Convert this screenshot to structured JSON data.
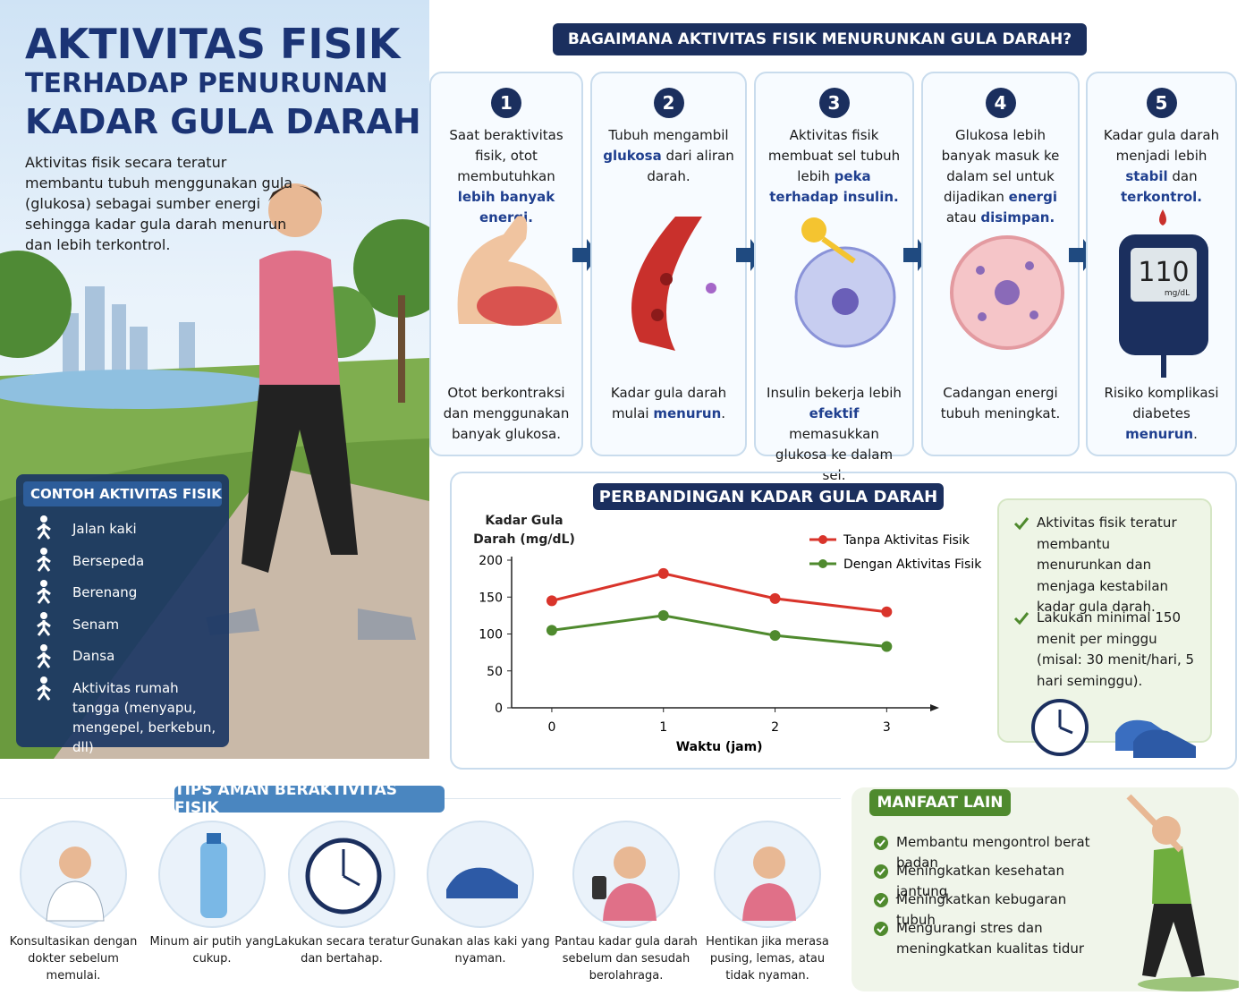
{
  "header": {
    "title": "AKTIVITAS FISIK",
    "subtitle_1": "TERHADAP PENURUNAN",
    "subtitle_2": "KADAR GULA DARAH",
    "description": "Aktivitas fisik secara teratur membantu tubuh menggunakan gula (glukosa) sebagai sumber energi sehingga kadar gula darah menurun dan lebih terkontrol."
  },
  "process": {
    "title": "BAGAIMANA AKTIVITAS FISIK MENURUNKAN GULA DARAH?",
    "steps": [
      {
        "number": "1",
        "top": [
          "Saat beraktivitas fisik, otot membutuhkan ",
          "lebih banyak energi."
        ],
        "bottom": [
          "Otot berkontraksi dan menggunakan banyak glukosa."
        ]
      },
      {
        "number": "2",
        "top": [
          "Tubuh mengambil ",
          "glukosa",
          " dari aliran darah."
        ],
        "bottom": [
          "Kadar gula darah mulai ",
          "menurun",
          "."
        ]
      },
      {
        "number": "3",
        "top": [
          "Aktivitas fisik membuat sel tubuh lebih ",
          "peka terhadap insulin."
        ],
        "bottom": [
          "Insulin bekerja lebih ",
          "efektif",
          " memasukkan glukosa ke dalam sel."
        ]
      },
      {
        "number": "4",
        "top": [
          "Glukosa lebih banyak masuk ke dalam sel untuk dijadikan ",
          "energi",
          " atau ",
          "disimpan."
        ],
        "bottom": [
          "Cadangan energi tubuh meningkat."
        ]
      },
      {
        "number": "5",
        "top": [
          "Kadar gula darah menjadi lebih ",
          "stabil",
          " dan ",
          "terkontrol."
        ],
        "bottom": [
          "Risiko komplikasi diabetes ",
          "menurun",
          "."
        ]
      }
    ],
    "meter": {
      "reading": "110",
      "unit": "mg/dL"
    }
  },
  "chart_data": {
    "type": "line",
    "title": "PERBANDINGAN KADAR GULA DARAH",
    "xlabel": "Waktu (jam)",
    "ylabel": "Kadar Gula Darah (mg/dL)",
    "x": [
      0,
      1,
      2,
      3
    ],
    "xlim": [
      -0.36,
      3.47
    ],
    "xticks": [
      0,
      1,
      2,
      3
    ],
    "ylim": [
      0,
      200
    ],
    "yticks": [
      0,
      50,
      100,
      150,
      200
    ],
    "grid": false,
    "legend": "upper right",
    "series": [
      {
        "name": "Tanpa Aktivitas Fisik",
        "color": "#d9342b",
        "values": [
          145,
          182,
          148,
          130
        ]
      },
      {
        "name": "Dengan Aktivitas Fisik",
        "color": "#4f8a2e",
        "values": [
          105,
          125,
          98,
          83
        ]
      }
    ]
  },
  "chart_notes": [
    "Aktivitas fisik teratur membantu menurunkan dan menjaga kestabilan kadar gula darah.",
    "Lakukan minimal 150 menit per minggu (misal: 30 menit/hari, 5 hari seminggu)."
  ],
  "activities": {
    "title": "CONTOH AKTIVITAS FISIK",
    "items": [
      "Jalan kaki",
      "Bersepeda",
      "Berenang",
      "Senam",
      "Dansa",
      "Aktivitas rumah tangga (menyapu, mengepel, berkebun, dll)"
    ]
  },
  "tips": {
    "title": "TIPS AMAN BERAKTIVITAS FISIK",
    "items": [
      "Konsultasikan dengan dokter sebelum memulai.",
      "Minum air putih yang cukup.",
      "Lakukan secara teratur dan bertahap.",
      "Gunakan alas kaki yang nyaman.",
      "Pantau kadar gula darah sebelum dan sesudah berolahraga.",
      "Hentikan jika merasa pusing, lemas, atau tidak nyaman."
    ]
  },
  "benefits": {
    "title": "MANFAAT LAIN",
    "items": [
      "Membantu mengontrol berat badan",
      "Meningkatkan kesehatan jantung",
      "Meningkatkan kebugaran tubuh",
      "Mengurangi stres dan meningkatkan kualitas tidur"
    ]
  }
}
